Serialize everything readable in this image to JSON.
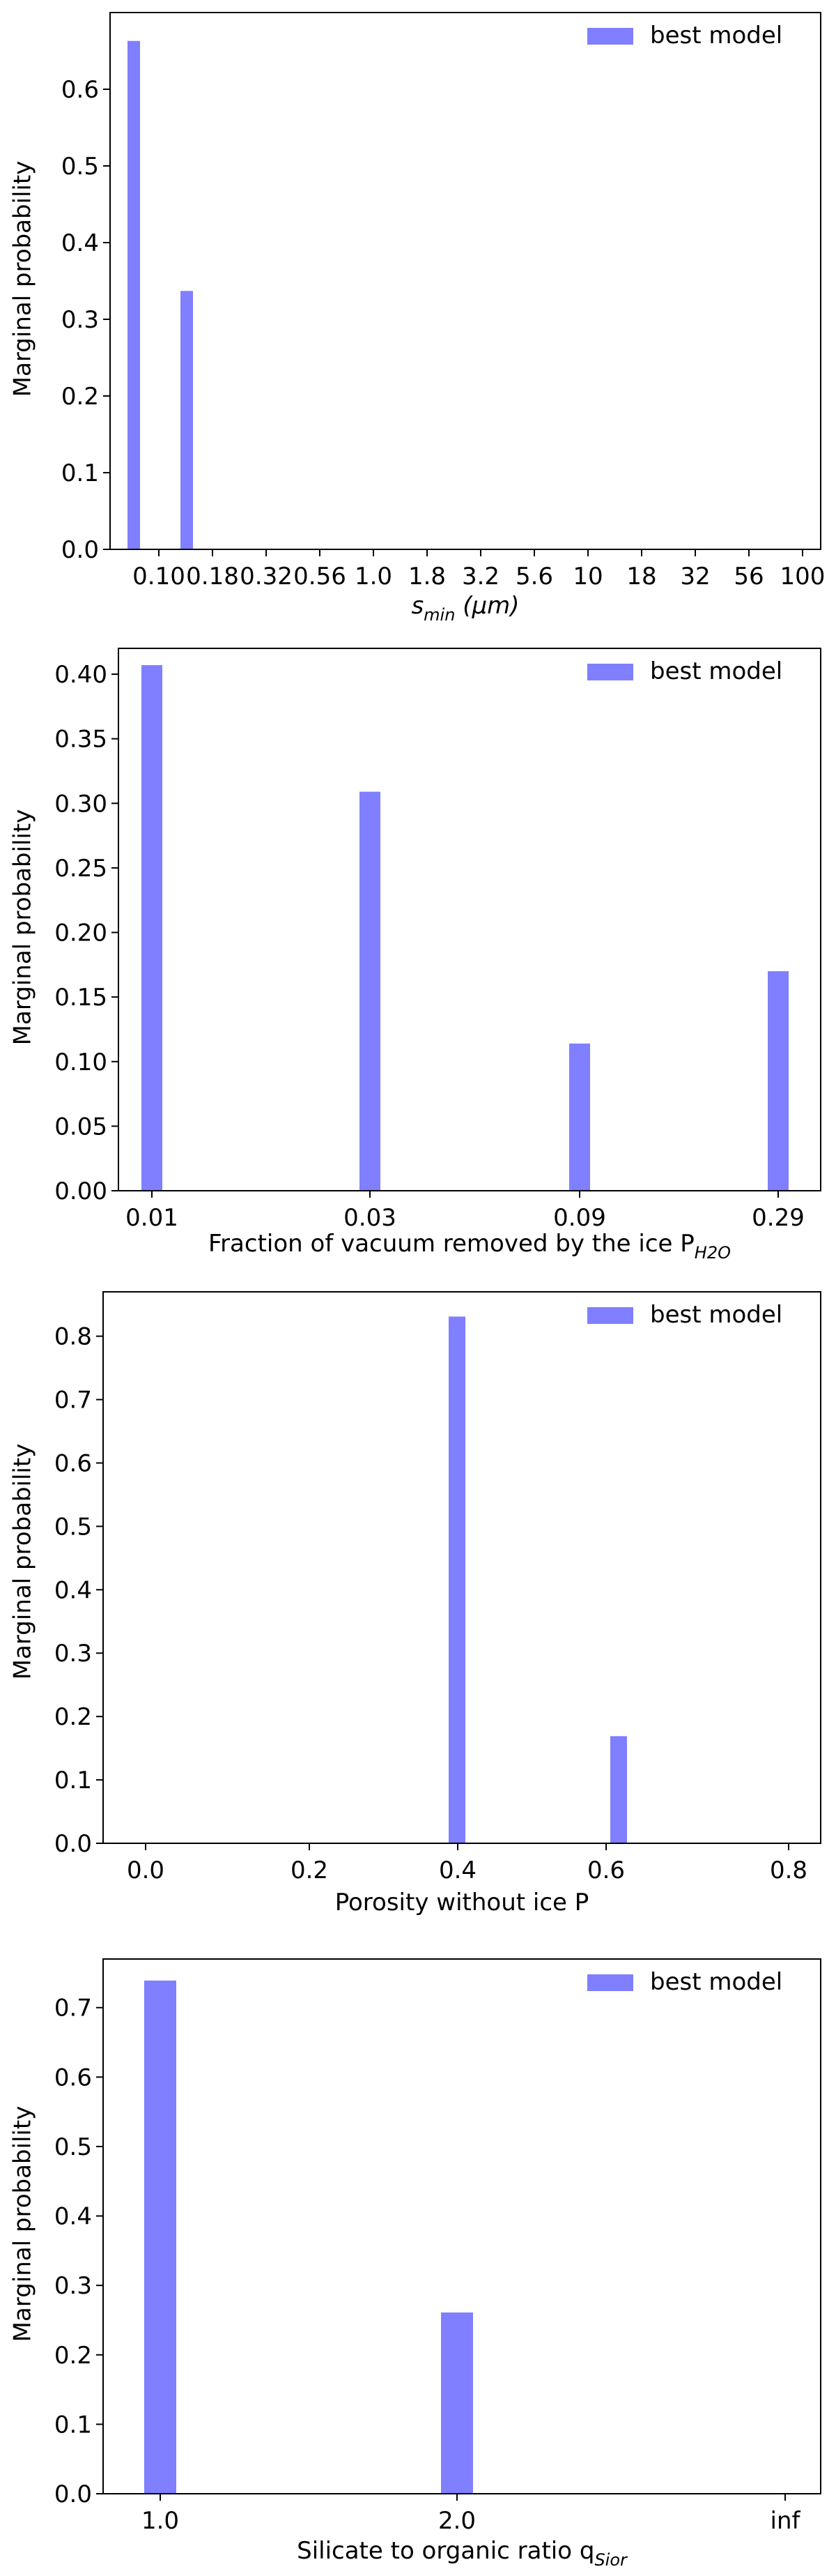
{
  "chart_data": [
    {
      "type": "bar",
      "title": "",
      "xlabel": "s",
      "xlabel_sub": "min",
      "xlabel_suffix": " (μm)",
      "ylabel": "Marginal probability",
      "categories": [
        "0.10",
        "0.18",
        "0.32",
        "0.56",
        "1.0",
        "1.8",
        "3.2",
        "5.6",
        "10",
        "18",
        "32",
        "56",
        "100"
      ],
      "values": [
        0.663,
        0.337,
        0,
        0,
        0,
        0,
        0,
        0,
        0,
        0,
        0,
        0,
        0
      ],
      "ylim": [
        0,
        0.7
      ],
      "yticks": [
        "0.0",
        "0.1",
        "0.2",
        "0.3",
        "0.4",
        "0.5",
        "0.6"
      ],
      "series": [
        {
          "name": "best model",
          "color": "#7f7fff"
        }
      ],
      "legend": "top-right",
      "grid": false
    },
    {
      "type": "bar",
      "title": "",
      "xlabel": "Fraction of vacuum removed by the ice P",
      "xlabel_sub": "H2O",
      "xlabel_suffix": "",
      "ylabel": "Marginal probability",
      "categories": [
        "0.01",
        "0.03",
        "0.09",
        "0.29"
      ],
      "values": [
        0.407,
        0.309,
        0.114,
        0.17
      ],
      "ylim": [
        0,
        0.42
      ],
      "yticks": [
        "0.00",
        "0.05",
        "0.10",
        "0.15",
        "0.20",
        "0.25",
        "0.30",
        "0.35",
        "0.40"
      ],
      "series": [
        {
          "name": "best model",
          "color": "#7f7fff"
        }
      ],
      "legend": "top-right",
      "grid": false
    },
    {
      "type": "bar",
      "title": "",
      "xlabel": "Porosity without ice P",
      "xlabel_sub": "",
      "xlabel_suffix": "",
      "ylabel": "Marginal probability",
      "categories": [
        "0.0",
        "0.2",
        "0.4",
        "0.6",
        "0.8"
      ],
      "values": [
        0,
        0,
        0.831,
        0.169,
        0
      ],
      "ylim": [
        0,
        0.87
      ],
      "yticks": [
        "0.0",
        "0.1",
        "0.2",
        "0.3",
        "0.4",
        "0.5",
        "0.6",
        "0.7",
        "0.8"
      ],
      "series": [
        {
          "name": "best model",
          "color": "#7f7fff"
        }
      ],
      "legend": "top-right",
      "grid": false
    },
    {
      "type": "bar",
      "title": "",
      "xlabel": "Silicate to organic ratio q",
      "xlabel_sub": "Sior",
      "xlabel_suffix": "",
      "ylabel": "Marginal probability",
      "categories": [
        "1.0",
        "2.0",
        "inf"
      ],
      "values": [
        0.739,
        0.261,
        0
      ],
      "ylim": [
        0,
        0.77
      ],
      "yticks": [
        "0.0",
        "0.1",
        "0.2",
        "0.3",
        "0.4",
        "0.5",
        "0.6",
        "0.7"
      ],
      "series": [
        {
          "name": "best model",
          "color": "#7f7fff"
        }
      ],
      "legend": "top-right",
      "grid": false
    }
  ]
}
